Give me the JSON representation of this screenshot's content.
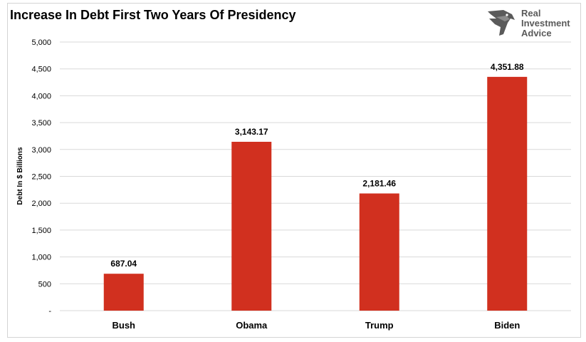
{
  "logo": {
    "line1": "Real",
    "line2": "Investment",
    "line3": "Advice",
    "icon": "eagle-icon",
    "color": "#5a5a5a"
  },
  "chart_data": {
    "type": "bar",
    "title": "Increase In Debt First Two Years Of Presidency",
    "ylabel": "Debt In $ Billions",
    "xlabel": "",
    "categories": [
      "Bush",
      "Obama",
      "Trump",
      "Biden"
    ],
    "values": [
      687.04,
      3143.17,
      2181.46,
      4351.88
    ],
    "data_labels": [
      "687.04",
      "3,143.17",
      "2,181.46",
      "4,351.88"
    ],
    "ylim": [
      0,
      5000
    ],
    "yticks": [
      0,
      500,
      1000,
      1500,
      2000,
      2500,
      3000,
      3500,
      4000,
      4500,
      5000
    ],
    "ytick_labels": [
      "-",
      "500",
      "1,000",
      "1,500",
      "2,000",
      "2,500",
      "3,000",
      "3,500",
      "4,000",
      "4,500",
      "5,000"
    ],
    "bar_color": "#d1301f",
    "grid": true,
    "legend": "none"
  }
}
